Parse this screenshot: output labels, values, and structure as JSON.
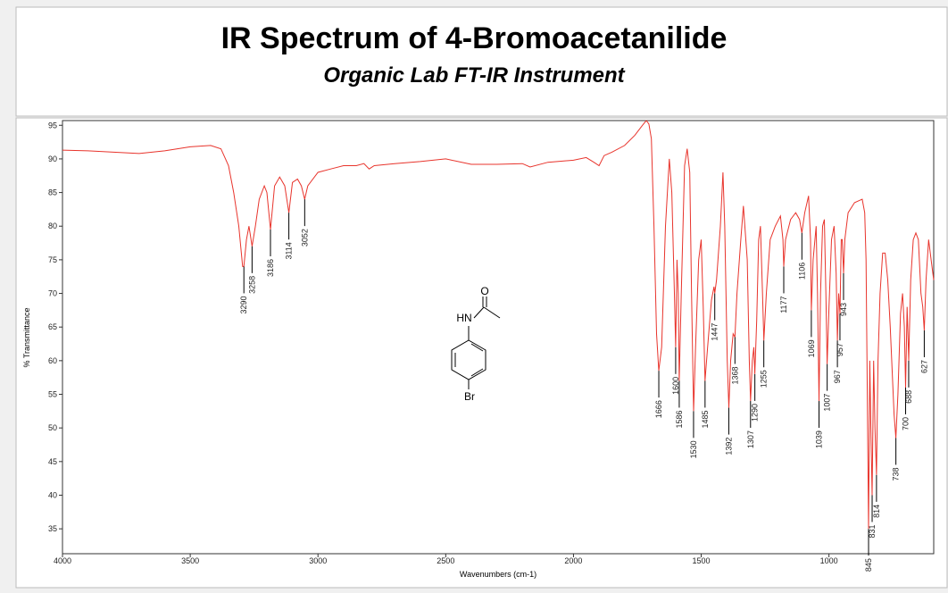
{
  "chart_data": {
    "type": "line",
    "title": "IR Spectrum of 4-Bromoacetanilide",
    "subtitle": "Organic Lab FT-IR Instrument",
    "x_label": "Wavenumbers (cm-1)",
    "y_label": "% Transmittance",
    "color": "#e8342c",
    "xlim": [
      4000,
      590
    ],
    "xticks": [
      4000,
      3500,
      3000,
      2500,
      2000,
      1500,
      1000
    ],
    "ylim": [
      31.3,
      95.7
    ],
    "yticks": [
      35,
      40,
      45,
      50,
      55,
      60,
      65,
      70,
      75,
      80,
      85,
      90,
      95
    ],
    "x": [
      4000,
      3900,
      3800,
      3700,
      3600,
      3500,
      3420,
      3380,
      3350,
      3330,
      3310,
      3295,
      3290,
      3280,
      3270,
      3258,
      3245,
      3230,
      3210,
      3200,
      3186,
      3170,
      3150,
      3130,
      3114,
      3100,
      3080,
      3065,
      3052,
      3040,
      3000,
      2950,
      2900,
      2850,
      2820,
      2800,
      2780,
      2700,
      2600,
      2500,
      2400,
      2300,
      2200,
      2170,
      2100,
      2000,
      1950,
      1920,
      1900,
      1880,
      1850,
      1800,
      1760,
      1730,
      1715,
      1705,
      1695,
      1685,
      1675,
      1666,
      1655,
      1640,
      1625,
      1615,
      1605,
      1600,
      1595,
      1590,
      1586,
      1578,
      1565,
      1555,
      1545,
      1538,
      1530,
      1522,
      1510,
      1500,
      1492,
      1485,
      1475,
      1460,
      1450,
      1447,
      1440,
      1425,
      1415,
      1408,
      1398,
      1392,
      1385,
      1375,
      1368,
      1360,
      1345,
      1335,
      1320,
      1312,
      1307,
      1300,
      1294,
      1290,
      1283,
      1275,
      1268,
      1260,
      1255,
      1245,
      1230,
      1210,
      1190,
      1180,
      1177,
      1170,
      1150,
      1130,
      1115,
      1106,
      1095,
      1080,
      1072,
      1069,
      1062,
      1050,
      1045,
      1039,
      1033,
      1025,
      1018,
      1012,
      1007,
      1000,
      990,
      980,
      972,
      967,
      962,
      957,
      952,
      948,
      943,
      938,
      925,
      900,
      870,
      860,
      855,
      850,
      845,
      840,
      836,
      831,
      825,
      820,
      814,
      808,
      800,
      790,
      780,
      770,
      760,
      745,
      738,
      730,
      720,
      712,
      705,
      700,
      694,
      688,
      680,
      670,
      660,
      650,
      640,
      633,
      627,
      620,
      610,
      600,
      590
    ],
    "values": [
      91.3,
      91.2,
      91.0,
      90.8,
      91.2,
      91.8,
      92.0,
      91.5,
      89,
      85,
      80,
      74,
      74,
      78,
      80,
      77,
      80,
      84,
      86,
      85,
      79.5,
      86,
      87.3,
      86,
      82,
      86.5,
      87,
      86,
      84,
      86,
      88,
      88.5,
      89,
      89,
      89.3,
      88.5,
      89,
      89.3,
      89.6,
      90,
      89.2,
      89.2,
      89.3,
      88.8,
      89.5,
      89.8,
      90.2,
      89.5,
      89,
      90.5,
      91,
      92,
      93.5,
      95,
      95.7,
      95.2,
      93,
      80,
      64,
      58.5,
      62,
      80,
      90,
      85,
      70,
      62,
      75,
      70,
      57,
      70,
      89,
      91.5,
      88,
      70,
      52.5,
      62,
      75,
      78,
      68,
      57,
      62,
      69,
      71,
      70,
      72,
      80,
      88,
      80,
      60,
      53,
      60,
      64,
      63.5,
      70,
      78,
      83,
      75,
      60,
      54,
      60,
      62,
      58,
      66,
      78,
      80,
      70,
      63,
      70,
      78,
      80,
      81.5,
      78,
      74,
      78,
      81,
      82,
      81,
      79,
      82,
      84.5,
      78,
      67.5,
      75,
      80,
      70,
      54,
      70,
      80,
      81,
      70,
      59.5,
      68,
      78,
      80,
      73,
      63,
      70,
      67,
      78,
      78,
      73,
      78,
      82,
      83.5,
      84,
      82,
      75,
      55,
      35,
      60,
      50,
      40,
      60,
      50,
      43,
      60,
      70,
      76,
      76,
      72,
      65,
      52,
      48.5,
      55,
      67,
      70,
      65,
      56,
      68,
      60,
      72,
      78,
      79,
      78,
      70,
      68,
      64.5,
      72,
      78,
      75,
      72
    ],
    "peaks": [
      {
        "x": 3290,
        "y": 74
      },
      {
        "x": 3258,
        "y": 77
      },
      {
        "x": 3186,
        "y": 79.5
      },
      {
        "x": 3114,
        "y": 82
      },
      {
        "x": 3052,
        "y": 84
      },
      {
        "x": 1666,
        "y": 58.5
      },
      {
        "x": 1600,
        "y": 62
      },
      {
        "x": 1586,
        "y": 57
      },
      {
        "x": 1530,
        "y": 52.5
      },
      {
        "x": 1485,
        "y": 57
      },
      {
        "x": 1447,
        "y": 70
      },
      {
        "x": 1392,
        "y": 53
      },
      {
        "x": 1368,
        "y": 63.5
      },
      {
        "x": 1307,
        "y": 54
      },
      {
        "x": 1290,
        "y": 58
      },
      {
        "x": 1255,
        "y": 63
      },
      {
        "x": 1177,
        "y": 74
      },
      {
        "x": 1106,
        "y": 79
      },
      {
        "x": 1069,
        "y": 67.5
      },
      {
        "x": 1039,
        "y": 54
      },
      {
        "x": 1007,
        "y": 59.5
      },
      {
        "x": 967,
        "y": 63
      },
      {
        "x": 957,
        "y": 67
      },
      {
        "x": 943,
        "y": 73
      },
      {
        "x": 845,
        "y": 35
      },
      {
        "x": 831,
        "y": 40
      },
      {
        "x": 814,
        "y": 43
      },
      {
        "x": 738,
        "y": 48.5
      },
      {
        "x": 700,
        "y": 56
      },
      {
        "x": 688,
        "y": 60
      },
      {
        "x": 627,
        "y": 64.5
      }
    ],
    "structure_labels": [
      "HN",
      "O",
      "Br"
    ]
  }
}
